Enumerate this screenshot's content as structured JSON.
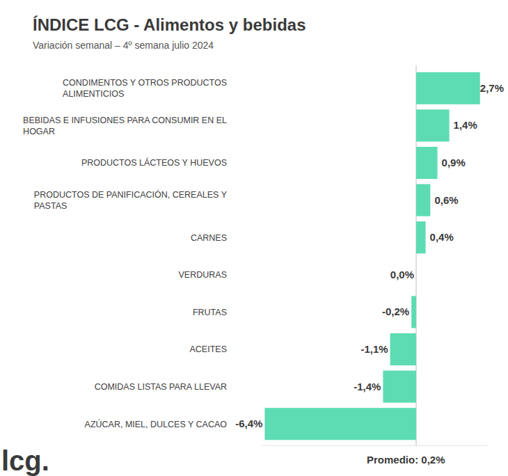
{
  "chart_data": {
    "type": "bar",
    "orientation": "horizontal",
    "title": "ÍNDICE LCG - Alimentos y bebidas",
    "subtitle": "Variación semanal – 4º semana julio 2024",
    "categories": [
      "CONDIMENTOS Y OTROS PRODUCTOS ALIMENTICIOS",
      "BEBIDAS E INFUSIONES PARA CONSUMIR EN EL HOGAR",
      "PRODUCTOS LÁCTEOS Y HUEVOS",
      "PRODUCTOS DE PANIFICACIÓN, CEREALES Y PASTAS",
      "CARNES",
      "VERDURAS",
      "FRUTAS",
      "ACEITES",
      "COMIDAS LISTAS PARA LLEVAR",
      "AZÚCAR, MIEL, DULCES Y CACAO"
    ],
    "values": [
      2.7,
      1.4,
      0.9,
      0.6,
      0.4,
      0,
      -0.2,
      -1.1,
      -1.4,
      -6.4
    ],
    "value_labels": [
      "2,7%",
      "1,4%",
      "0,9%",
      "0,6%",
      "0,4%",
      "0,0%",
      "-0,2%",
      "-1,1%",
      "-1,4%",
      "-6,4%"
    ],
    "color": "#5ddcb3",
    "data_labels": true,
    "xlim": [
      -6.5,
      3.0
    ],
    "xticks": [
      0
    ],
    "tick_labels": false,
    "grid": true,
    "note": "Promedio: 0,2%",
    "logo": "lcg."
  }
}
